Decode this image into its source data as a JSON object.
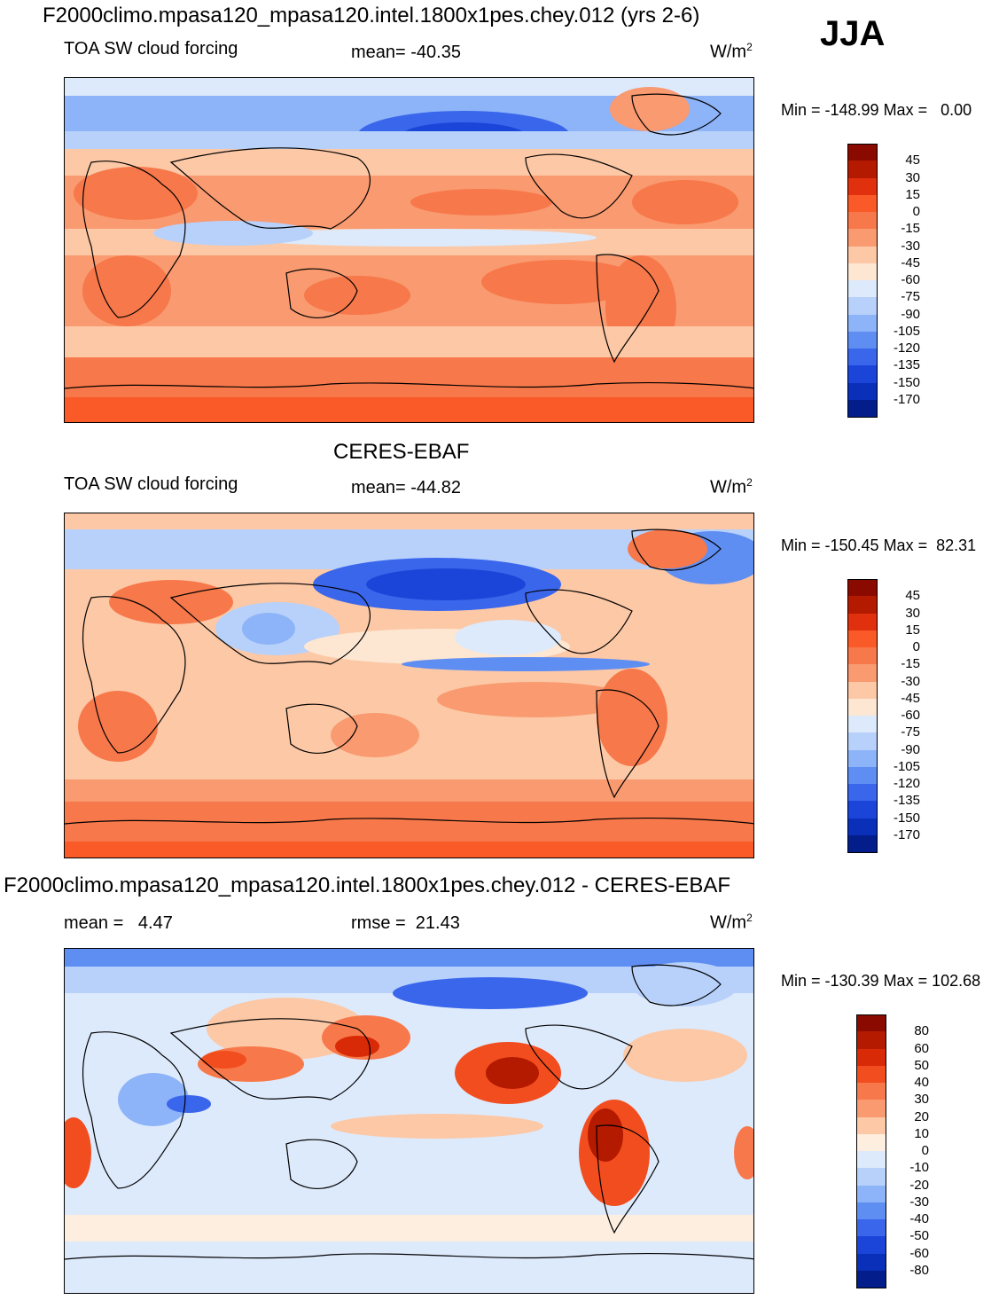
{
  "season": "JJA",
  "panels": [
    {
      "title": "F2000climo.mpasa120_mpasa120.intel.1800x1pes.chey.012 (yrs 2-6)",
      "left_label": "TOA SW cloud forcing",
      "center_label": "mean= -40.35",
      "units": "W/m",
      "units_sup": "2",
      "minmax": "Min = -148.99 Max =   0.00",
      "colorbar": {
        "levels": [
          "45",
          "30",
          "15",
          "0",
          "-15",
          "-30",
          "-45",
          "-60",
          "-75",
          "-90",
          "-105",
          "-120",
          "-135",
          "-150",
          "-170"
        ],
        "colors": [
          "#8b0a00",
          "#b41a00",
          "#e0300e",
          "#fa5a28",
          "#f7784a",
          "#f99a70",
          "#fcc8a6",
          "#fde6d2",
          "#ddeafc",
          "#b7d1fb",
          "#8db3f8",
          "#5f8ef3",
          "#3a66ec",
          "#1b45d8",
          "#0a2fb9",
          "#031d8a"
        ]
      },
      "map_style": "model"
    },
    {
      "title": "CERES-EBAF",
      "left_label": "TOA SW cloud forcing",
      "center_label": "mean= -44.82",
      "units": "W/m",
      "units_sup": "2",
      "minmax": "Min = -150.45 Max =  82.31",
      "colorbar": {
        "levels": [
          "45",
          "30",
          "15",
          "0",
          "-15",
          "-30",
          "-45",
          "-60",
          "-75",
          "-90",
          "-105",
          "-120",
          "-135",
          "-150",
          "-170"
        ],
        "colors": [
          "#8b0a00",
          "#b41a00",
          "#e0300e",
          "#fa5a28",
          "#f7784a",
          "#f99a70",
          "#fcc8a6",
          "#fde6d2",
          "#ddeafc",
          "#b7d1fb",
          "#8db3f8",
          "#5f8ef3",
          "#3a66ec",
          "#1b45d8",
          "#0a2fb9",
          "#031d8a"
        ]
      },
      "map_style": "obs"
    },
    {
      "title": "F2000climo.mpasa120_mpasa120.intel.1800x1pes.chey.012 - CERES-EBAF",
      "left_label": "mean =   4.47",
      "center_label": "rmse =  21.43",
      "units": "W/m",
      "units_sup": "2",
      "minmax": "Min = -130.39 Max = 102.68",
      "colorbar": {
        "levels": [
          "80",
          "60",
          "50",
          "40",
          "30",
          "20",
          "10",
          "0",
          "-10",
          "-20",
          "-30",
          "-40",
          "-50",
          "-60",
          "-80"
        ],
        "colors": [
          "#8b0a00",
          "#b41a00",
          "#d92a08",
          "#f24d1f",
          "#f7784a",
          "#f99a70",
          "#fcc8a6",
          "#fdeee0",
          "#ddeafc",
          "#b7d1fb",
          "#8db3f8",
          "#5f8ef3",
          "#3a66ec",
          "#1b45d8",
          "#0a2fb9",
          "#031d8a"
        ]
      },
      "map_style": "diff"
    }
  ]
}
